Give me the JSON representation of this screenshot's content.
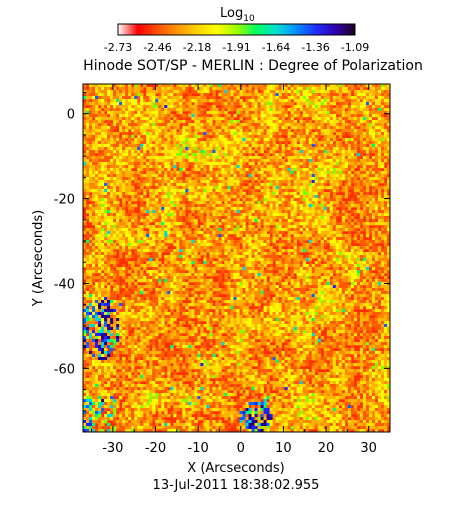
{
  "chart_data": {
    "type": "heatmap",
    "title": "Hinode SOT/SP - MERLIN : Degree of Polarization",
    "xlabel": "X (Arcseconds)",
    "ylabel": "Y (Arcseconds)",
    "footer": "13-Jul-2011 18:38:02.955",
    "xlim": [
      -37,
      35
    ],
    "ylim": [
      -75,
      7
    ],
    "xticks": [
      -30,
      -20,
      -10,
      0,
      10,
      20,
      30
    ],
    "yticks": [
      0,
      -20,
      -40,
      -60
    ],
    "colorbar": {
      "title_base": "Log",
      "title_sub": "10",
      "min": -2.73,
      "max": -1.09,
      "tick_labels": [
        "-2.73",
        "-2.46",
        "-2.18",
        "-1.91",
        "-1.64",
        "-1.36",
        "-1.09"
      ],
      "colors": [
        "#ffffff",
        "#ff0000",
        "#ff5000",
        "#ff9600",
        "#ffd200",
        "#ffff00",
        "#a0ff00",
        "#00ff60",
        "#00e0d0",
        "#0090ff",
        "#2030ff",
        "#3000b0",
        "#200020"
      ]
    },
    "data_summary": "Noisy map dominated by low values (red/orange) with scattered yellow and green patches and a few blue clusters near the lower-left and bottom edge."
  }
}
